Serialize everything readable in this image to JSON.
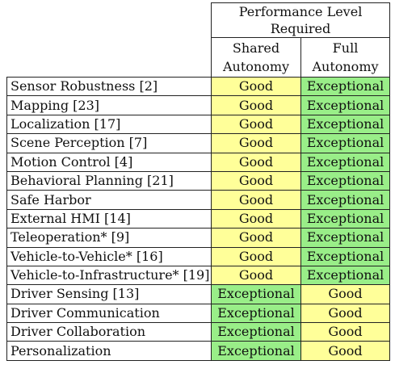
{
  "header": {
    "main": [
      "Performance Level",
      "Required"
    ],
    "shared": [
      "Shared",
      "Autonomy"
    ],
    "full": [
      "Full",
      "Autonomy"
    ]
  },
  "levels": {
    "good": "Good",
    "exceptional": "Exceptional"
  },
  "rows": [
    {
      "task": "Sensor Robustness [2]",
      "shared": "Good",
      "full": "Exceptional"
    },
    {
      "task": "Mapping [23]",
      "shared": "Good",
      "full": "Exceptional"
    },
    {
      "task": "Localization [17]",
      "shared": "Good",
      "full": "Exceptional"
    },
    {
      "task": "Scene Perception [7]",
      "shared": "Good",
      "full": "Exceptional"
    },
    {
      "task": "Motion Control [4]",
      "shared": "Good",
      "full": "Exceptional"
    },
    {
      "task": "Behavioral Planning [21]",
      "shared": "Good",
      "full": "Exceptional"
    },
    {
      "task": "Safe Harbor",
      "shared": "Good",
      "full": "Exceptional"
    },
    {
      "task": "External HMI [14]",
      "shared": "Good",
      "full": "Exceptional"
    },
    {
      "task": "Teleoperation* [9]",
      "shared": "Good",
      "full": "Exceptional"
    },
    {
      "task": "Vehicle-to-Vehicle* [16]",
      "shared": "Good",
      "full": "Exceptional"
    },
    {
      "task": "Vehicle-to-Infrastructure* [19]",
      "shared": "Good",
      "full": "Exceptional"
    },
    {
      "task": "Driver Sensing [13]",
      "shared": "Exceptional",
      "full": "Good"
    },
    {
      "task": "Driver Communication",
      "shared": "Exceptional",
      "full": "Good"
    },
    {
      "task": "Driver Collaboration",
      "shared": "Exceptional",
      "full": "Good"
    },
    {
      "task": "Personalization",
      "shared": "Exceptional",
      "full": "Good"
    }
  ],
  "colors": {
    "good": "#ffff99",
    "exceptional": "#99ee88",
    "border": "#222222"
  }
}
